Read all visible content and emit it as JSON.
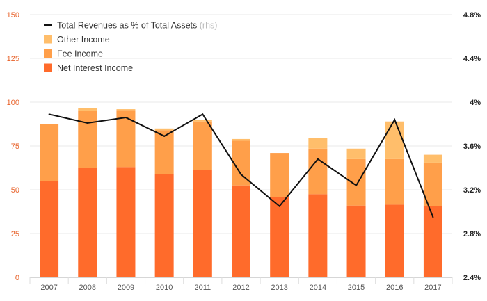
{
  "chart_data": {
    "type": "bar",
    "categories": [
      "2007",
      "2008",
      "2009",
      "2010",
      "2011",
      "2012",
      "2013",
      "2014",
      "2015",
      "2016",
      "2017"
    ],
    "series": [
      {
        "name": "Net Interest Income",
        "type": "bar",
        "stack": "income",
        "color": "#ff6b2b",
        "values": [
          55,
          62.5,
          63,
          59,
          61.5,
          52.5,
          46,
          47.5,
          41,
          41.5,
          40.5
        ]
      },
      {
        "name": "Fee Income",
        "type": "bar",
        "stack": "income",
        "color": "#ff9f4a",
        "values": [
          32.5,
          32.5,
          32.5,
          25,
          27.5,
          25.5,
          25,
          26,
          26.5,
          26,
          25
        ]
      },
      {
        "name": "Other Income",
        "type": "bar",
        "stack": "income",
        "color": "#ffbe6b",
        "values": [
          0,
          1.5,
          0.5,
          1,
          1,
          1,
          0,
          6,
          6,
          21.5,
          4.5
        ]
      },
      {
        "name": "Total Revenues as % of Total Assets",
        "type": "line",
        "axis": "right",
        "color": "#111111",
        "values": [
          3.89,
          3.81,
          3.86,
          3.69,
          3.89,
          3.34,
          3.05,
          3.48,
          3.24,
          3.84,
          2.95
        ]
      }
    ],
    "left_axis": {
      "ylim": [
        0,
        150
      ],
      "ticks": [
        "0",
        "25",
        "50",
        "75",
        "100",
        "125",
        "150"
      ],
      "color": "#e8622a"
    },
    "right_axis": {
      "ylim": [
        2.4,
        4.8
      ],
      "ticks": [
        "2.4%",
        "2.8%",
        "3.2%",
        "3.6%",
        "4%",
        "4.4%",
        "4.8%"
      ]
    },
    "legend": {
      "placement": "top-left",
      "items": [
        {
          "label": "Total Revenues as % of Total Assets",
          "note": "(rhs)",
          "marker": "line",
          "color": "#111111"
        },
        {
          "label": "Other Income",
          "marker": "square",
          "color": "#ffbe6b"
        },
        {
          "label": "Fee Income",
          "marker": "square",
          "color": "#ff9f4a"
        },
        {
          "label": "Net Interest Income",
          "marker": "square",
          "color": "#ff6b2b"
        }
      ]
    },
    "grid": true
  }
}
